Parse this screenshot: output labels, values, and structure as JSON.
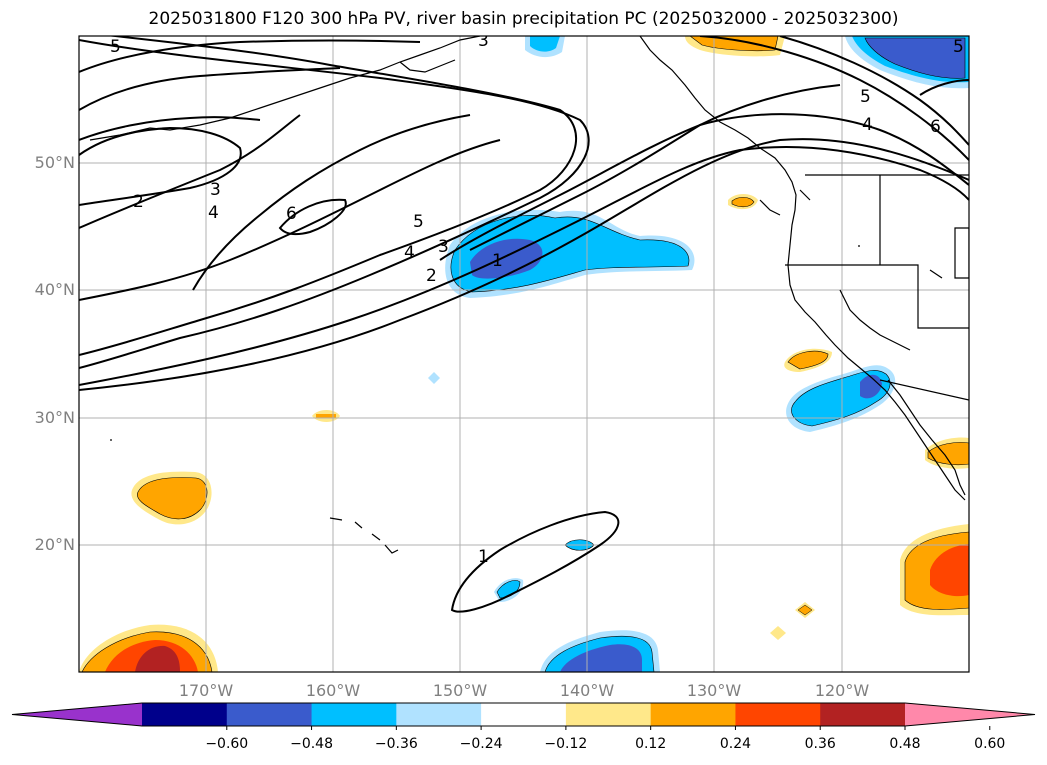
{
  "title": "2025031800 F120 300 hPa PV, river basin precipitation PC (2025032000 - 2025032300)",
  "map": {
    "projection": "PlateCarree",
    "lon_range": [
      -180,
      -110
    ],
    "lat_range": [
      10,
      60
    ],
    "gridlines": true,
    "lat_labels": [
      {
        "lat": 50,
        "text": "50°N"
      },
      {
        "lat": 40,
        "text": "40°N"
      },
      {
        "lat": 30,
        "text": "30°N"
      },
      {
        "lat": 20,
        "text": "20°N"
      }
    ],
    "lon_labels": [
      {
        "lon": -170,
        "text": "170°W"
      },
      {
        "lon": -160,
        "text": "160°W"
      },
      {
        "lon": -150,
        "text": "150°W"
      },
      {
        "lon": -140,
        "text": "140°W"
      },
      {
        "lon": -130,
        "text": "130°W"
      },
      {
        "lon": -120,
        "text": "120°W"
      }
    ],
    "pv_contour_labels": [
      "5",
      "3",
      "2",
      "3",
      "4",
      "6",
      "5",
      "4",
      "3",
      "2",
      "1",
      "5",
      "4",
      "6",
      "5",
      "1"
    ],
    "shading_colors": {
      "neg_strong": "#3a5bcc",
      "neg_mid": "#00bfff",
      "neg_weak": "#b0e2ff",
      "pos_weak": "#ffe88a",
      "pos_mid": "#ffa500",
      "pos_strong": "#ff4500",
      "pos_very_strong": "#b22222"
    }
  },
  "colorbar": {
    "colors": [
      "#9932cc",
      "#00008b",
      "#3a5bcc",
      "#00bfff",
      "#b0e2ff",
      "#ffffff",
      "#ffe88a",
      "#ffa500",
      "#ff4500",
      "#b22222",
      "#ff88aa"
    ],
    "ticks": [
      "−0.60",
      "−0.48",
      "−0.36",
      "−0.24",
      "−0.12",
      "0.12",
      "0.24",
      "0.36",
      "0.48",
      "0.60"
    ]
  }
}
